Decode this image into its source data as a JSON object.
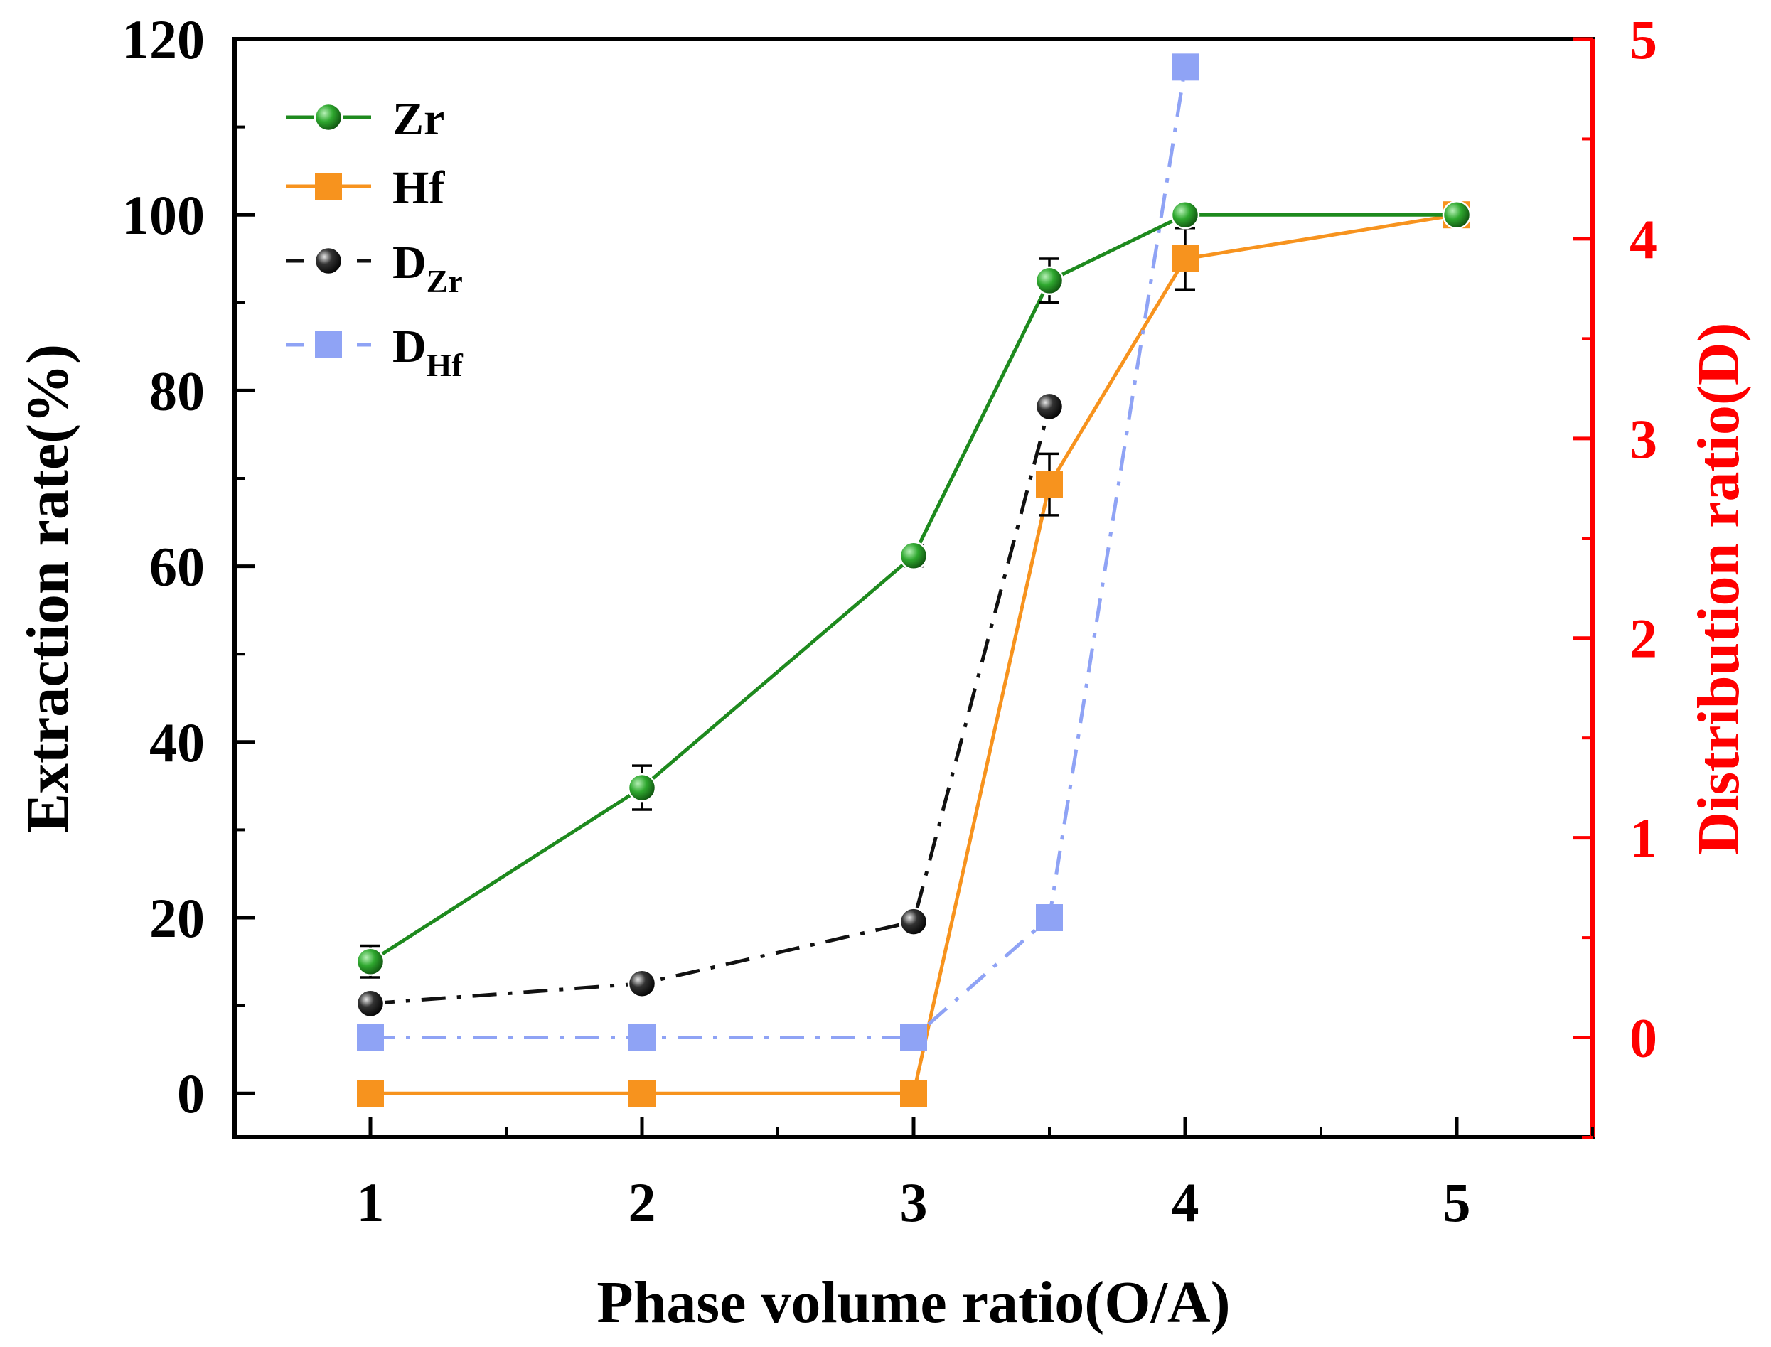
{
  "chart_data": {
    "type": "line",
    "title": "",
    "xlabel": "Phase volume ratio(O/A)",
    "ylabel": "Extraction rate(%)",
    "y2label": "Distribution ratio(D)",
    "xlim": [
      0.5,
      5.5
    ],
    "ylim": [
      -5,
      120
    ],
    "y2lim": [
      -0.5,
      5
    ],
    "xticks": [
      "1",
      "2",
      "3",
      "4",
      "5"
    ],
    "yticks": [
      "0",
      "20",
      "40",
      "60",
      "80",
      "100",
      "120"
    ],
    "y2ticks": [
      "0",
      "1",
      "2",
      "3",
      "4",
      "5"
    ],
    "legend_position": "top-left",
    "axis_colors": {
      "left": "#000000",
      "right": "#ff0000"
    },
    "series": [
      {
        "name": "Zr",
        "axis": "left",
        "color": "#1e8a1e",
        "marker": "circle",
        "linestyle": "solid",
        "x": [
          1,
          2,
          3,
          3.5,
          4,
          5
        ],
        "values": [
          15.0,
          34.8,
          61.2,
          92.5,
          100.0,
          100.0
        ],
        "errors": [
          1.8,
          2.5,
          1.2,
          2.5,
          0,
          0
        ]
      },
      {
        "name": "Hf",
        "axis": "left",
        "color": "#f7931e",
        "marker": "square",
        "linestyle": "solid",
        "x": [
          1,
          2,
          3,
          3.5,
          4,
          5
        ],
        "values": [
          0.0,
          0.0,
          0.0,
          69.3,
          95.0,
          100.0
        ],
        "errors": [
          0,
          0,
          0,
          3.5,
          3.5,
          0
        ]
      },
      {
        "name": "D",
        "sub": "Zr",
        "axis": "right",
        "color": "#111111",
        "marker": "circle",
        "linestyle": "dashdot",
        "x": [
          1,
          2,
          3,
          3.5
        ],
        "values": [
          0.17,
          0.27,
          0.58,
          3.16
        ]
      },
      {
        "name": "D",
        "sub": "Hf",
        "axis": "right",
        "color": "#8fa3f5",
        "marker": "square",
        "linestyle": "dashdot",
        "x": [
          1,
          2,
          3,
          3.5,
          4
        ],
        "values": [
          0.0,
          0.0,
          0.0,
          0.6,
          4.86
        ]
      }
    ]
  }
}
